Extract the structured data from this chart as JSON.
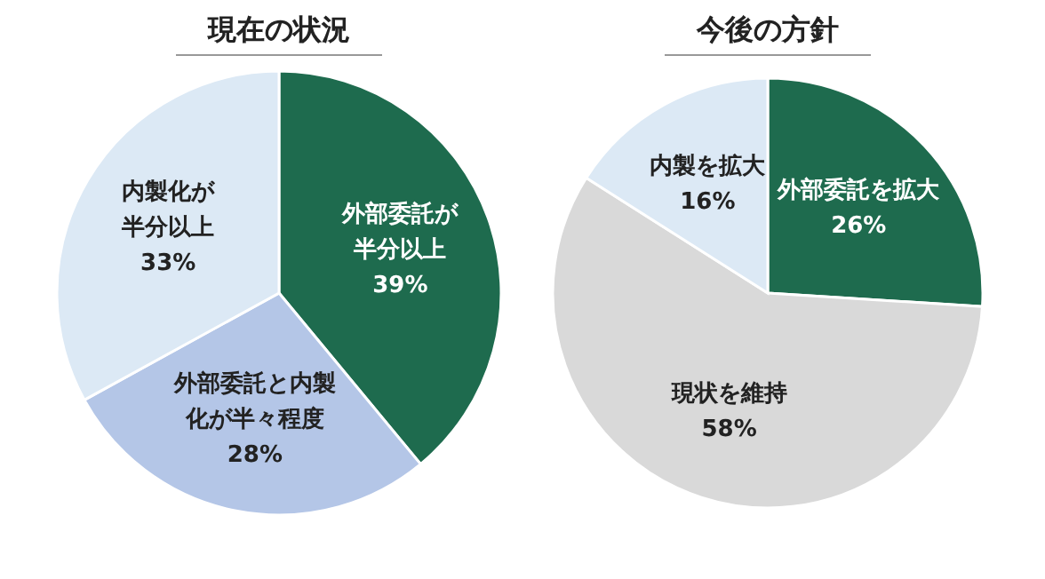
{
  "chart_data": [
    {
      "type": "pie",
      "title": "現在の状況",
      "categories": [
        "外部委託が半分以上",
        "外部委託と内製化が半々程度",
        "内製化が半分以上"
      ],
      "values": [
        39,
        28,
        33
      ],
      "colors": [
        "#1e6b4e",
        "#b4c6e7",
        "#dce9f5"
      ],
      "value_labels": [
        "39%",
        "28%",
        "33%"
      ]
    },
    {
      "type": "pie",
      "title": "今後の方針",
      "categories": [
        "外部委託を拡大",
        "現状を維持",
        "内製を拡大"
      ],
      "values": [
        26,
        58,
        16
      ],
      "colors": [
        "#1e6b4e",
        "#d9d9d9",
        "#dce9f5"
      ],
      "value_labels": [
        "26%",
        "58%",
        "16%"
      ]
    }
  ]
}
